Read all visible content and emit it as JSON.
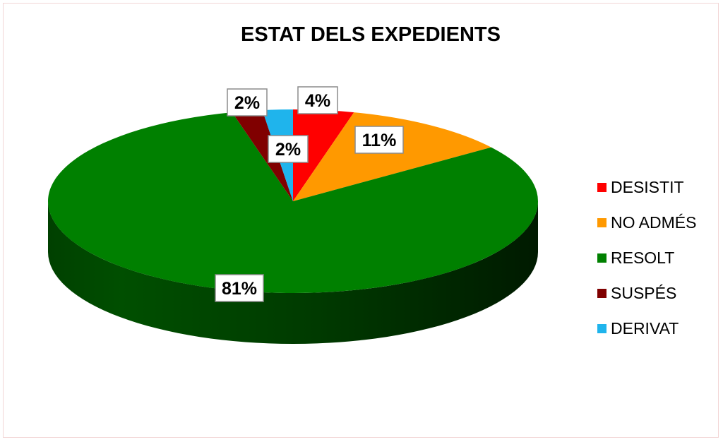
{
  "chart_data": {
    "type": "pie",
    "title": "ESTAT DELS EXPEDIENTS",
    "categories": [
      "DESISTIT",
      "NO ADMÉS",
      "RESOLT",
      "SUSPÉS",
      "DERIVAT"
    ],
    "values": [
      4,
      11,
      81,
      2,
      2
    ],
    "data_labels": [
      "4%",
      "11%",
      "81%",
      "2%",
      "2%"
    ],
    "colors": [
      "#ff0000",
      "#ff9900",
      "#008000",
      "#800000",
      "#1fb4ec"
    ],
    "legend_position": "right",
    "style": "3d-tilted"
  }
}
